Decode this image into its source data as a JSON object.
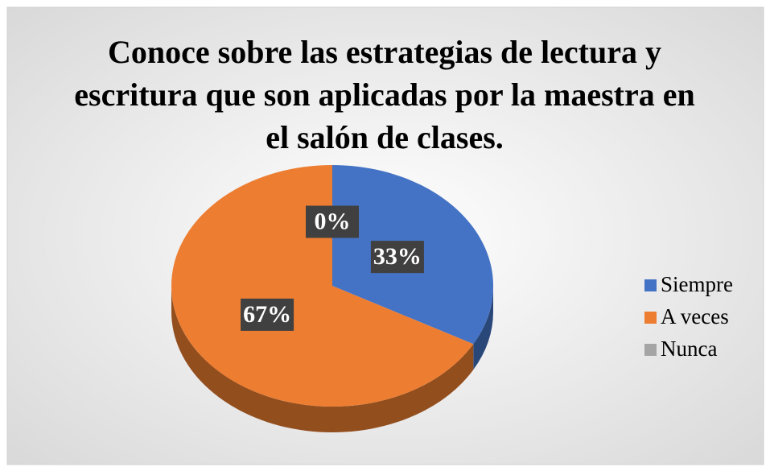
{
  "chart_data": {
    "type": "pie",
    "title": "Conoce sobre las estrategias de lectura y escritura que son aplicadas por la maestra en el salón de clases.",
    "categories": [
      "Siempre",
      "A veces",
      "Nunca"
    ],
    "values": [
      33,
      67,
      0
    ],
    "value_labels": [
      "33%",
      "67%",
      "0%"
    ],
    "colors": [
      "#4472c4",
      "#ed7d31",
      "#a5a5a5"
    ],
    "legend": "right"
  }
}
